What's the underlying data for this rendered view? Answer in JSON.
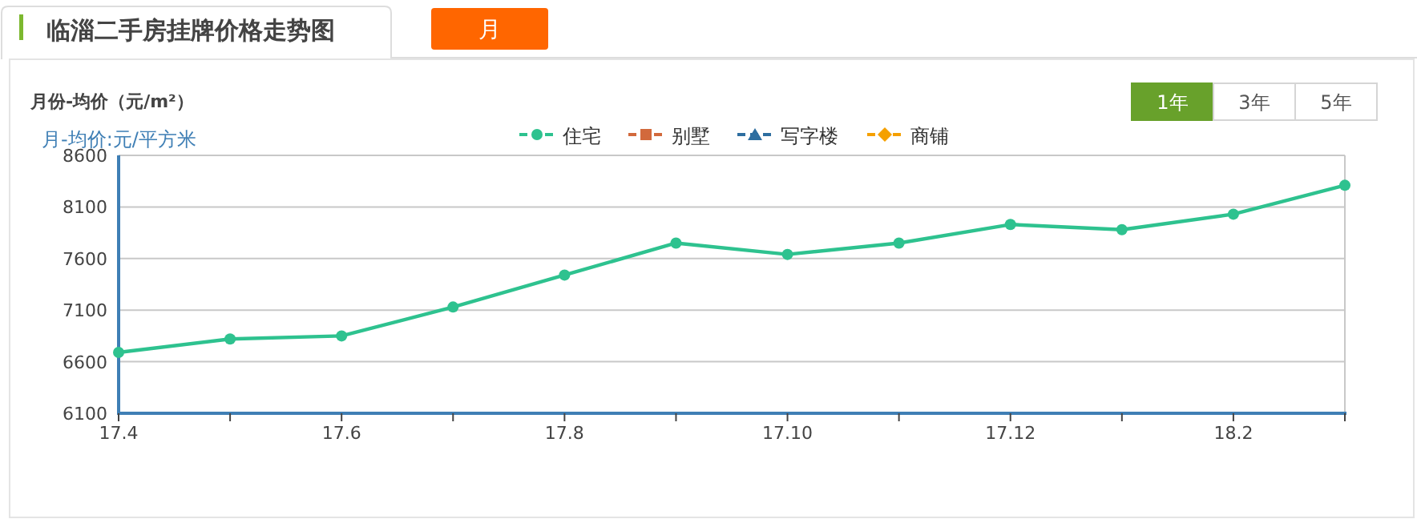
{
  "chart_data": {
    "type": "line",
    "title": "临淄二手房挂牌价格走势图",
    "subtitle": "月份-均价（元/m²）",
    "ylabel": "月-均价:元/平方米",
    "annotations": [
      "月",
      "1年",
      "3年",
      "5年"
    ],
    "categories": [
      "17.4",
      null,
      "17.6",
      null,
      "17.8",
      null,
      "17.10",
      null,
      "17.12",
      null,
      "18.2",
      null
    ],
    "series": [
      {
        "name": "住宅",
        "color": "#2ec28f",
        "marker": "circle",
        "values": [
          6690,
          6820,
          6850,
          7130,
          7440,
          7750,
          7640,
          7750,
          7930,
          7880,
          8030,
          8310
        ]
      },
      {
        "name": "别墅",
        "color": "#d2693c",
        "marker": "square",
        "values": [
          null,
          null,
          null,
          null,
          null,
          null,
          null,
          null,
          null,
          null,
          null,
          null
        ]
      },
      {
        "name": "写字楼",
        "color": "#2e6ea0",
        "marker": "triangle",
        "values": [
          null,
          null,
          null,
          null,
          null,
          null,
          null,
          null,
          null,
          null,
          null,
          null
        ]
      },
      {
        "name": "商铺",
        "color": "#f5a000",
        "marker": "diamond",
        "values": [
          null,
          null,
          null,
          null,
          null,
          null,
          null,
          null,
          null,
          null,
          null,
          null
        ]
      }
    ],
    "ylim": [
      6100,
      8600
    ],
    "yticks": [
      6100,
      6600,
      7100,
      7600,
      8100,
      8600
    ],
    "grid": "y",
    "legend": "top",
    "line_style": "solid"
  }
}
